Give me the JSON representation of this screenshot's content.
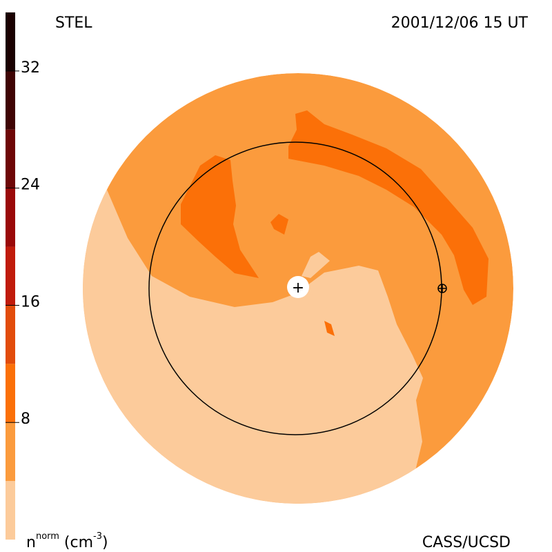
{
  "header": {
    "source_label": "STEL",
    "timestamp": "2001/12/06 15 UT"
  },
  "footer": {
    "unit_label_main": "n",
    "unit_label_sup": "norm",
    "unit_label_paren_open": " (cm",
    "unit_label_exp": "-3",
    "unit_label_paren_close": ")",
    "credit": "CASS/UCSD"
  },
  "colorbar": {
    "ticks": [
      {
        "label": "32",
        "value": 32
      },
      {
        "label": "24",
        "value": 24
      },
      {
        "label": "16",
        "value": 16
      },
      {
        "label": "8",
        "value": 8
      }
    ],
    "bands": [
      {
        "value_min": 0,
        "value_max": 4,
        "color": "#fccb9b"
      },
      {
        "value_min": 4,
        "value_max": 8,
        "color": "#fb9b3d"
      },
      {
        "value_min": 8,
        "value_max": 12,
        "color": "#fb7008"
      },
      {
        "value_min": 12,
        "value_max": 16,
        "color": "#e24c0b"
      },
      {
        "value_min": 16,
        "value_max": 20,
        "color": "#c01b0b"
      },
      {
        "value_min": 20,
        "value_max": 24,
        "color": "#9a0909"
      },
      {
        "value_min": 24,
        "value_max": 28,
        "color": "#6e0606"
      },
      {
        "value_min": 28,
        "value_max": 32,
        "color": "#3f0404"
      },
      {
        "value_min": 32,
        "value_max": 36,
        "color": "#1a0101"
      }
    ]
  },
  "colors": {
    "level_1": "#fccb9b",
    "level_2": "#fb9b3d",
    "level_3": "#fb7008",
    "level_dark": "#c01b0b",
    "outline": "#000000"
  },
  "markers": {
    "sun_symbol": "+",
    "earth_symbol": "⊕"
  }
}
